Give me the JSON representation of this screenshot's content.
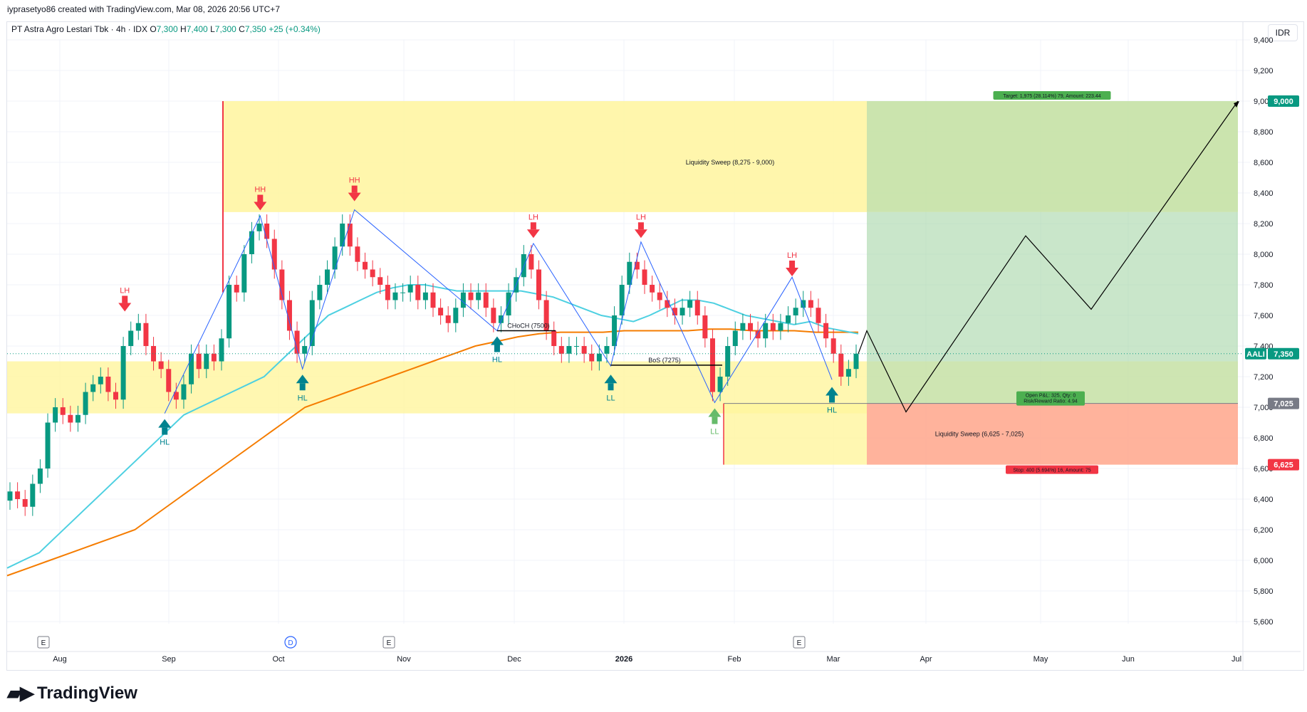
{
  "header": {
    "attribution": "iyprasetyo86 created with TradingView.com, Mar 08, 2026 20:56 UTC+7"
  },
  "legend": {
    "symbol_text": "PT Astra Agro Lestari Tbk · 4h · IDX",
    "open_label": "O",
    "open": "7,300",
    "high_label": "H",
    "high": "7,400",
    "low_label": "L",
    "low": "7,300",
    "close_label": "C",
    "close": "7,350",
    "change": "+25 (+0.34%)"
  },
  "currency": "IDR",
  "brand": {
    "name": "TradingView",
    "logo_icon": "tradingview-logo-icon"
  },
  "colors": {
    "up": "#089981",
    "down": "#f23645",
    "ema_fast": "#4dd0e1",
    "ema_slow": "#f57c00",
    "zone_yellow": "#fff59d",
    "target_zone": "#a5d6a7",
    "target_zone_dark": "#c5e1a5",
    "stop_zone": "#ffab91",
    "structure_line": "#2962ff",
    "projection": "#000000"
  },
  "chart_data": {
    "type": "candlestick",
    "symbol": "AALI",
    "ylim": [
      5500,
      9500
    ],
    "y_ticks": [
      "9,400",
      "9,200",
      "9,000",
      "8,800",
      "8,600",
      "8,400",
      "8,200",
      "8,000",
      "7,800",
      "7,600",
      "7,400",
      "7,200",
      "7,000",
      "6,800",
      "6,600",
      "6,400",
      "6,200",
      "6,000",
      "5,800",
      "5,600"
    ],
    "x_ticks": [
      "Aug",
      "Sep",
      "Oct",
      "Nov",
      "Dec",
      "2026",
      "Feb",
      "Mar",
      "Apr",
      "May",
      "Jun",
      "Jul"
    ],
    "price_badges": [
      {
        "text": "AALI",
        "value": "7,350",
        "y": 7350,
        "color": "#089981"
      },
      {
        "text": "",
        "value": "9,000",
        "y": 9000,
        "color": "#089981"
      },
      {
        "text": "",
        "value": "7,025",
        "y": 7025,
        "color": "#787b86"
      },
      {
        "text": "",
        "value": "6,625",
        "y": 6625,
        "color": "#f23645"
      }
    ],
    "last_price": 7350,
    "zones": [
      {
        "label": "Liquidity Sweep (8,275 - 9,000)",
        "from": 8275,
        "to": 9000
      },
      {
        "label": "",
        "from": 6960,
        "to": 7300
      },
      {
        "label": "Liquidity Sweep (6,625 - 7,025)",
        "from": 6625,
        "to": 7025
      }
    ],
    "position": {
      "entry": 7025,
      "target": 9000,
      "stop": 6625,
      "target_label": "Target: 1,975 (28.114%) 79, Amount: 223.44",
      "stop_label": "Stop: 400 (5.694%) 16, Amount: 75",
      "info_line1": "Open P&L: 325, Qty: 0",
      "info_line2": "Risk/Reward Ratio: 4.94"
    },
    "structure_lines": [
      {
        "label": "CHoCH (7500)",
        "value": 7500
      },
      {
        "label": "BoS (7275)",
        "value": 7275
      }
    ],
    "swing_labels": [
      {
        "text": "LH",
        "kind": "high",
        "t": 0.095,
        "price": 7570
      },
      {
        "text": "HL",
        "kind": "low",
        "t": 0.128,
        "price": 6960
      },
      {
        "text": "HH",
        "kind": "high",
        "t": 0.207,
        "price": 8230
      },
      {
        "text": "HL",
        "kind": "low",
        "t": 0.242,
        "price": 7250
      },
      {
        "text": "HH",
        "kind": "high",
        "t": 0.285,
        "price": 8290
      },
      {
        "text": "LH",
        "kind": "high",
        "t": 0.433,
        "price": 8050
      },
      {
        "text": "HL",
        "kind": "low",
        "t": 0.403,
        "price": 7500
      },
      {
        "text": "LL",
        "kind": "low",
        "t": 0.497,
        "price": 7250
      },
      {
        "text": "LH",
        "kind": "high",
        "t": 0.522,
        "price": 8050
      },
      {
        "text": "LL",
        "kind": "low",
        "t": 0.583,
        "price": 7030
      },
      {
        "text": "LH",
        "kind": "high",
        "t": 0.647,
        "price": 7800
      },
      {
        "text": "HL",
        "kind": "low",
        "t": 0.68,
        "price": 7170
      }
    ],
    "events": [
      {
        "code": "E",
        "x": "Aug"
      },
      {
        "code": "D",
        "x": "Oct"
      },
      {
        "code": "E",
        "x": "Nov"
      },
      {
        "code": "E",
        "x": "Feb"
      }
    ],
    "projection_path_prices": [
      7350,
      7500,
      6970,
      8120,
      7640,
      9000
    ],
    "candle_closes": [
      6450,
      6400,
      6350,
      6500,
      6600,
      6900,
      7000,
      6950,
      6900,
      6950,
      7100,
      7150,
      7200,
      7100,
      7050,
      7400,
      7500,
      7550,
      7400,
      7300,
      7250,
      7100,
      7050,
      7150,
      7350,
      7250,
      7350,
      7300,
      7450,
      7800,
      7750,
      8000,
      8150,
      8200,
      8100,
      7900,
      7700,
      7500,
      7350,
      7400,
      7700,
      7800,
      7900,
      8050,
      8200,
      8050,
      7950,
      7900,
      7850,
      7800,
      7700,
      7750,
      7750,
      7800,
      7700,
      7750,
      7650,
      7600,
      7550,
      7650,
      7750,
      7700,
      7750,
      7650,
      7550,
      7600,
      7750,
      7850,
      8000,
      7900,
      7700,
      7500,
      7400,
      7350,
      7400,
      7400,
      7350,
      7300,
      7350,
      7400,
      7600,
      7800,
      7950,
      7900,
      7800,
      7750,
      7700,
      7650,
      7600,
      7650,
      7700,
      7600,
      7450,
      7100,
      7200,
      7400,
      7500,
      7550,
      7500,
      7450,
      7550,
      7500,
      7550,
      7600,
      7650,
      7700,
      7650,
      7550,
      7450,
      7350,
      7200,
      7250,
      7350
    ],
    "ema_fast": [
      5950,
      6000,
      6050,
      6150,
      6250,
      6350,
      6450,
      6550,
      6650,
      6750,
      6850,
      6950,
      7000,
      7050,
      7100,
      7150,
      7200,
      7300,
      7400,
      7500,
      7600,
      7650,
      7700,
      7750,
      7780,
      7800,
      7800,
      7780,
      7760,
      7760,
      7760,
      7760,
      7760,
      7740,
      7720,
      7680,
      7640,
      7600,
      7580,
      7560,
      7600,
      7650,
      7700,
      7700,
      7680,
      7640,
      7600,
      7580,
      7560,
      7540,
      7560,
      7520,
      7500,
      7480
    ],
    "ema_slow": [
      5900,
      5950,
      6000,
      6050,
      6100,
      6150,
      6200,
      6300,
      6400,
      6500,
      6600,
      6700,
      6800,
      6900,
      7000,
      7050,
      7100,
      7150,
      7200,
      7250,
      7300,
      7350,
      7400,
      7430,
      7460,
      7480,
      7490,
      7490,
      7490,
      7500,
      7500,
      7500,
      7500,
      7510,
      7510,
      7500,
      7500,
      7500,
      7490,
      7490,
      7490
    ]
  }
}
